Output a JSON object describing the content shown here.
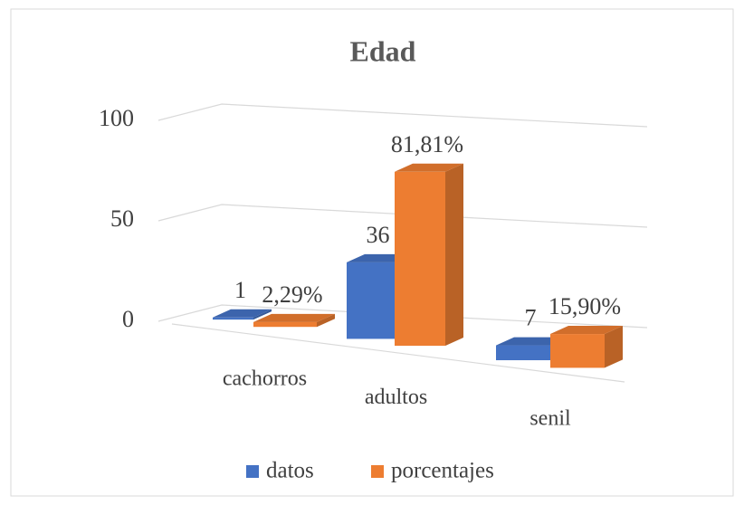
{
  "chart_data": {
    "type": "bar3d",
    "title": "Edad",
    "categories": [
      "cachorros",
      "adultos",
      "senil"
    ],
    "series": [
      {
        "name": "datos",
        "color": "#4472c4",
        "values": [
          1,
          36,
          7
        ]
      },
      {
        "name": "porcentajes",
        "color": "#ed7d31",
        "values": [
          2.29,
          81.81,
          15.9
        ],
        "value_labels": [
          "2,29%",
          "81,81%",
          "15,90%"
        ]
      }
    ],
    "ylim": [
      0,
      100
    ],
    "yticks": [
      0,
      50,
      100
    ],
    "grid": true,
    "legend": "bottom"
  }
}
